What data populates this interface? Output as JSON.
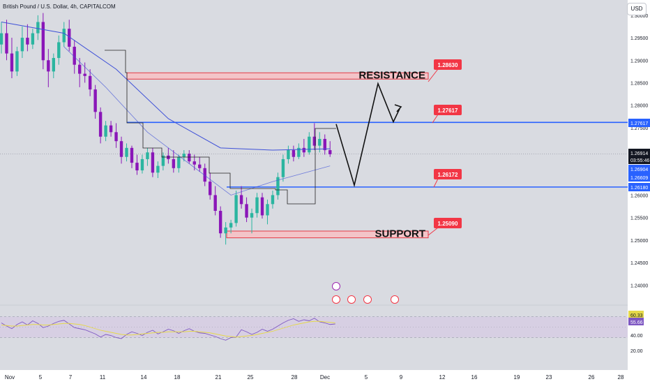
{
  "header": {
    "title": "British Pound / U.S. Dollar, 4h, CAPITALCOM",
    "currency": "USD"
  },
  "colors": {
    "up": "#2bb5a0",
    "down": "#8a16b8",
    "level_line": "#2962ff",
    "zone_fill": "#f3c4c8",
    "zone_border": "#e53945",
    "flag_red": "#f23645",
    "ema": "#3f51d8",
    "rsi": "#7e57c2",
    "rsi_ma": "#e5d84a"
  },
  "chart_data": {
    "type": "candlestick",
    "symbol": "GBPUSD",
    "timeframe": "4h",
    "price_axis": {
      "range": [
        1.2374,
        1.3006
      ],
      "ticks": [
        "1.24000",
        "1.24500",
        "1.25000",
        "1.25500",
        "1.26000",
        "1.26500",
        "1.27000",
        "1.27500",
        "1.28000",
        "1.28500",
        "1.29000",
        "1.29500",
        "1.30000"
      ]
    },
    "date_axis": {
      "labels": [
        "Nov",
        "5",
        "7",
        "11",
        "14",
        "18",
        "21",
        "25",
        "28",
        "Dec",
        "5",
        "9",
        "12",
        "16",
        "19",
        "23",
        "26",
        "28"
      ]
    },
    "price_labels": [
      {
        "value": "1.27617",
        "color": "#2962ff",
        "text_color": "#ffffff"
      },
      {
        "value": "1.26914",
        "color": "#131722",
        "text_color": "#ffffff"
      },
      {
        "value": "03:55:46",
        "color": "#131722",
        "text_color": "#ffffff"
      },
      {
        "value": "1.26904",
        "color": "#2962ff",
        "text_color": "#ffffff"
      },
      {
        "value": "1.26609",
        "color": "#2962ff",
        "text_color": "#ffffff"
      },
      {
        "value": "1.26180",
        "color": "#2962ff",
        "text_color": "#ffffff"
      }
    ],
    "levels": [
      {
        "name": "resistance-line",
        "price": 1.27617
      },
      {
        "name": "support-line",
        "price": 1.2618
      }
    ],
    "zones": [
      {
        "label": "RESISTANCE",
        "top": 1.2872,
        "bottom": 1.2858
      },
      {
        "label": "SUPPORT",
        "top": 1.252,
        "bottom": 1.2505
      }
    ],
    "callouts": [
      "1.28630",
      "1.27617",
      "1.26172",
      "1.25090"
    ],
    "projection_path": [
      {
        "date": "Nov 29",
        "price": 1.2758
      },
      {
        "date": "Dec 2",
        "price": 1.2622
      },
      {
        "date": "Dec 4",
        "price": 1.2848
      },
      {
        "date": "Dec 6",
        "price": 1.2763
      },
      {
        "date": "Dec 7",
        "price": 1.2792
      }
    ],
    "candles": [
      {
        "o": 1.2935,
        "h": 1.2985,
        "l": 1.2915,
        "c": 1.296
      },
      {
        "o": 1.296,
        "h": 1.299,
        "l": 1.29,
        "c": 1.2915
      },
      {
        "o": 1.2915,
        "h": 1.295,
        "l": 1.286,
        "c": 1.2875
      },
      {
        "o": 1.2875,
        "h": 1.293,
        "l": 1.2865,
        "c": 1.292
      },
      {
        "o": 1.292,
        "h": 1.2975,
        "l": 1.2905,
        "c": 1.295
      },
      {
        "o": 1.295,
        "h": 1.298,
        "l": 1.292,
        "c": 1.2935
      },
      {
        "o": 1.2935,
        "h": 1.297,
        "l": 1.2925,
        "c": 1.296
      },
      {
        "o": 1.296,
        "h": 1.3,
        "l": 1.2945,
        "c": 1.2985
      },
      {
        "o": 1.2985,
        "h": 1.3005,
        "l": 1.288,
        "c": 1.29
      },
      {
        "o": 1.29,
        "h": 1.2925,
        "l": 1.284,
        "c": 1.2875
      },
      {
        "o": 1.2875,
        "h": 1.2915,
        "l": 1.286,
        "c": 1.2905
      },
      {
        "o": 1.2905,
        "h": 1.2955,
        "l": 1.289,
        "c": 1.294
      },
      {
        "o": 1.294,
        "h": 1.2985,
        "l": 1.293,
        "c": 1.297
      },
      {
        "o": 1.297,
        "h": 1.299,
        "l": 1.292,
        "c": 1.293
      },
      {
        "o": 1.293,
        "h": 1.2945,
        "l": 1.287,
        "c": 1.289
      },
      {
        "o": 1.289,
        "h": 1.2905,
        "l": 1.284,
        "c": 1.287
      },
      {
        "o": 1.287,
        "h": 1.2895,
        "l": 1.285,
        "c": 1.2865
      },
      {
        "o": 1.2865,
        "h": 1.288,
        "l": 1.282,
        "c": 1.2835
      },
      {
        "o": 1.2835,
        "h": 1.2845,
        "l": 1.277,
        "c": 1.2785
      },
      {
        "o": 1.2785,
        "h": 1.2795,
        "l": 1.2715,
        "c": 1.273
      },
      {
        "o": 1.273,
        "h": 1.2765,
        "l": 1.272,
        "c": 1.2755
      },
      {
        "o": 1.2755,
        "h": 1.2765,
        "l": 1.273,
        "c": 1.274
      },
      {
        "o": 1.274,
        "h": 1.276,
        "l": 1.2705,
        "c": 1.272
      },
      {
        "o": 1.272,
        "h": 1.273,
        "l": 1.267,
        "c": 1.2685
      },
      {
        "o": 1.2685,
        "h": 1.2715,
        "l": 1.2675,
        "c": 1.2705
      },
      {
        "o": 1.2705,
        "h": 1.271,
        "l": 1.266,
        "c": 1.2672
      },
      {
        "o": 1.2672,
        "h": 1.269,
        "l": 1.2645,
        "c": 1.2655
      },
      {
        "o": 1.2655,
        "h": 1.269,
        "l": 1.2648,
        "c": 1.268
      },
      {
        "o": 1.268,
        "h": 1.2705,
        "l": 1.2665,
        "c": 1.2695
      },
      {
        "o": 1.2695,
        "h": 1.2705,
        "l": 1.264,
        "c": 1.265
      },
      {
        "o": 1.265,
        "h": 1.2675,
        "l": 1.2638,
        "c": 1.2665
      },
      {
        "o": 1.2665,
        "h": 1.2695,
        "l": 1.2655,
        "c": 1.2688
      },
      {
        "o": 1.2688,
        "h": 1.2705,
        "l": 1.267,
        "c": 1.268
      },
      {
        "o": 1.268,
        "h": 1.27,
        "l": 1.265,
        "c": 1.266
      },
      {
        "o": 1.266,
        "h": 1.269,
        "l": 1.265,
        "c": 1.2685
      },
      {
        "o": 1.2685,
        "h": 1.27,
        "l": 1.2675,
        "c": 1.2692
      },
      {
        "o": 1.2692,
        "h": 1.27,
        "l": 1.267,
        "c": 1.2675
      },
      {
        "o": 1.2675,
        "h": 1.269,
        "l": 1.2655,
        "c": 1.2668
      },
      {
        "o": 1.2668,
        "h": 1.2685,
        "l": 1.2652,
        "c": 1.266
      },
      {
        "o": 1.266,
        "h": 1.267,
        "l": 1.262,
        "c": 1.263
      },
      {
        "o": 1.263,
        "h": 1.265,
        "l": 1.259,
        "c": 1.26
      },
      {
        "o": 1.26,
        "h": 1.262,
        "l": 1.2555,
        "c": 1.2565
      },
      {
        "o": 1.2565,
        "h": 1.2575,
        "l": 1.2505,
        "c": 1.2515
      },
      {
        "o": 1.2515,
        "h": 1.254,
        "l": 1.249,
        "c": 1.2528
      },
      {
        "o": 1.2528,
        "h": 1.2545,
        "l": 1.2515,
        "c": 1.2538
      },
      {
        "o": 1.2538,
        "h": 1.261,
        "l": 1.253,
        "c": 1.26
      },
      {
        "o": 1.26,
        "h": 1.262,
        "l": 1.257,
        "c": 1.258
      },
      {
        "o": 1.258,
        "h": 1.2595,
        "l": 1.254,
        "c": 1.255
      },
      {
        "o": 1.255,
        "h": 1.257,
        "l": 1.2515,
        "c": 1.256
      },
      {
        "o": 1.256,
        "h": 1.2605,
        "l": 1.255,
        "c": 1.2595
      },
      {
        "o": 1.2595,
        "h": 1.2605,
        "l": 1.2548,
        "c": 1.2555
      },
      {
        "o": 1.2555,
        "h": 1.259,
        "l": 1.2535,
        "c": 1.258
      },
      {
        "o": 1.258,
        "h": 1.261,
        "l": 1.257,
        "c": 1.26
      },
      {
        "o": 1.26,
        "h": 1.265,
        "l": 1.259,
        "c": 1.264
      },
      {
        "o": 1.264,
        "h": 1.269,
        "l": 1.263,
        "c": 1.268
      },
      {
        "o": 1.268,
        "h": 1.271,
        "l": 1.267,
        "c": 1.27
      },
      {
        "o": 1.27,
        "h": 1.271,
        "l": 1.2675,
        "c": 1.2685
      },
      {
        "o": 1.2685,
        "h": 1.2715,
        "l": 1.268,
        "c": 1.2705
      },
      {
        "o": 1.2705,
        "h": 1.2725,
        "l": 1.2685,
        "c": 1.2695
      },
      {
        "o": 1.2695,
        "h": 1.274,
        "l": 1.269,
        "c": 1.273
      },
      {
        "o": 1.273,
        "h": 1.276,
        "l": 1.27,
        "c": 1.271
      },
      {
        "o": 1.271,
        "h": 1.274,
        "l": 1.2695,
        "c": 1.2725
      },
      {
        "o": 1.2725,
        "h": 1.2735,
        "l": 1.269,
        "c": 1.27
      },
      {
        "o": 1.27,
        "h": 1.272,
        "l": 1.2685,
        "c": 1.2691
      }
    ],
    "ema": [
      {
        "i": 0,
        "v": 1.2985
      },
      {
        "i": 12,
        "v": 1.296
      },
      {
        "i": 22,
        "v": 1.288
      },
      {
        "i": 32,
        "v": 1.277
      },
      {
        "i": 42,
        "v": 1.2705
      },
      {
        "i": 52,
        "v": 1.27
      },
      {
        "i": 63,
        "v": 1.2703
      }
    ],
    "sma": [
      {
        "i": 12,
        "v": 1.293
      },
      {
        "i": 20,
        "v": 1.284
      },
      {
        "i": 28,
        "v": 1.274
      },
      {
        "i": 36,
        "v": 1.267
      },
      {
        "i": 44,
        "v": 1.26
      },
      {
        "i": 52,
        "v": 1.263
      },
      {
        "i": 63,
        "v": 1.2665
      }
    ],
    "rsi": {
      "levels": [
        "60.33",
        "55.66",
        "40.00",
        "20.00"
      ],
      "upper_band": 70,
      "lower_band": 30,
      "rsi_values": [
        58,
        52,
        47,
        55,
        60,
        54,
        62,
        57,
        49,
        52,
        57,
        61,
        63,
        56,
        49,
        47,
        45,
        41,
        37,
        31,
        36,
        34,
        30,
        28,
        36,
        41,
        38,
        34,
        40,
        44,
        37,
        41,
        46,
        43,
        38,
        43,
        47,
        42,
        39,
        38,
        35,
        32,
        28,
        25,
        30,
        31,
        45,
        41,
        36,
        40,
        46,
        42,
        46,
        52,
        58,
        63,
        66,
        61,
        64,
        62,
        67,
        60,
        58,
        55,
        56
      ],
      "ma_values": [
        54,
        53,
        52,
        52,
        53,
        54,
        55,
        55,
        54,
        54,
        55,
        56,
        57,
        57,
        56,
        55,
        53,
        50,
        47,
        44,
        42,
        40,
        38,
        36,
        35,
        35,
        36,
        37,
        38,
        39,
        40,
        40,
        41,
        41,
        41,
        41,
        42,
        42,
        41,
        40,
        39,
        37,
        35,
        33,
        32,
        31,
        32,
        33,
        34,
        36,
        38,
        40,
        42,
        45,
        48,
        51,
        54,
        56,
        58,
        60,
        61,
        61,
        60,
        59,
        58
      ]
    }
  }
}
